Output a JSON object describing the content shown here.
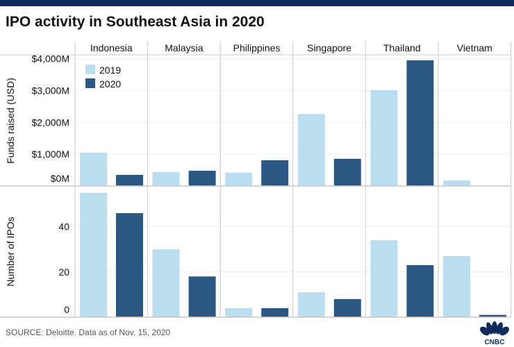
{
  "title": "IPO activity in Southeast Asia in 2020",
  "source": "SOURCE: Deloitte. Data as of Nov. 15, 2020",
  "logo_text": "CNBC",
  "colors": {
    "2019": "#badef0",
    "2020": "#2c5783",
    "header_bar": "#0c2c5a"
  },
  "chart_data": [
    {
      "type": "bar",
      "title": "",
      "ylabel": "Funds raised (USD)",
      "categories": [
        "Indonesia",
        "Malaysia",
        "Philippines",
        "Singapore",
        "Thailand",
        "Vietnam"
      ],
      "ylim": [
        0,
        4100
      ],
      "yticks": [
        0,
        1000,
        2000,
        3000,
        4000
      ],
      "ytick_labels": [
        "$0M",
        "$1,000M",
        "$2,000M",
        "$3,000M",
        "$4,000M"
      ],
      "grid": true,
      "legend": "top-left",
      "series": [
        {
          "name": "2019",
          "values": [
            1050,
            440,
            420,
            2260,
            3010,
            175
          ]
        },
        {
          "name": "2020",
          "values": [
            350,
            480,
            810,
            855,
            3950,
            0
          ]
        }
      ]
    },
    {
      "type": "bar",
      "title": "",
      "ylabel": "Number of IPOs",
      "categories": [
        "Indonesia",
        "Malaysia",
        "Philippines",
        "Singapore",
        "Thailand",
        "Vietnam"
      ],
      "ylim": [
        0,
        58
      ],
      "yticks": [
        0,
        20,
        40
      ],
      "ytick_labels": [
        "0",
        "20",
        "40"
      ],
      "grid": true,
      "series": [
        {
          "name": "2019",
          "values": [
            55,
            30,
            4,
            11,
            34,
            27
          ]
        },
        {
          "name": "2020",
          "values": [
            46,
            18,
            4,
            8,
            23,
            1
          ]
        }
      ]
    }
  ]
}
